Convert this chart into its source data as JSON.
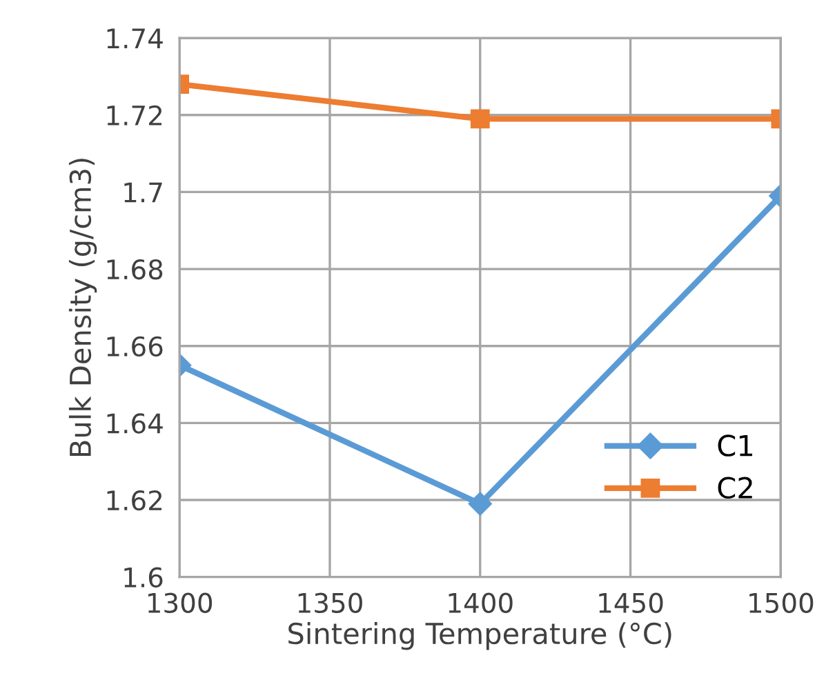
{
  "chart_data": {
    "type": "line",
    "xlabel": "Sintering Temperature (°C)",
    "ylabel": "Bulk Density (g/cm3)",
    "x": [
      1300,
      1400,
      1500
    ],
    "series": [
      {
        "name": "C1",
        "color": "#5b9bd5",
        "marker": "diamond",
        "values": [
          1.655,
          1.619,
          1.699
        ]
      },
      {
        "name": "C2",
        "color": "#ed7d31",
        "marker": "square",
        "values": [
          1.728,
          1.719,
          1.719
        ]
      }
    ],
    "xlim": [
      1300,
      1500
    ],
    "xticks": [
      1300,
      1350,
      1400,
      1450,
      1500
    ],
    "ylim": [
      1.6,
      1.74
    ],
    "yticks": [
      1.6,
      1.62,
      1.64,
      1.66,
      1.68,
      1.7,
      1.72,
      1.74
    ],
    "grid": true,
    "legend": "right"
  }
}
